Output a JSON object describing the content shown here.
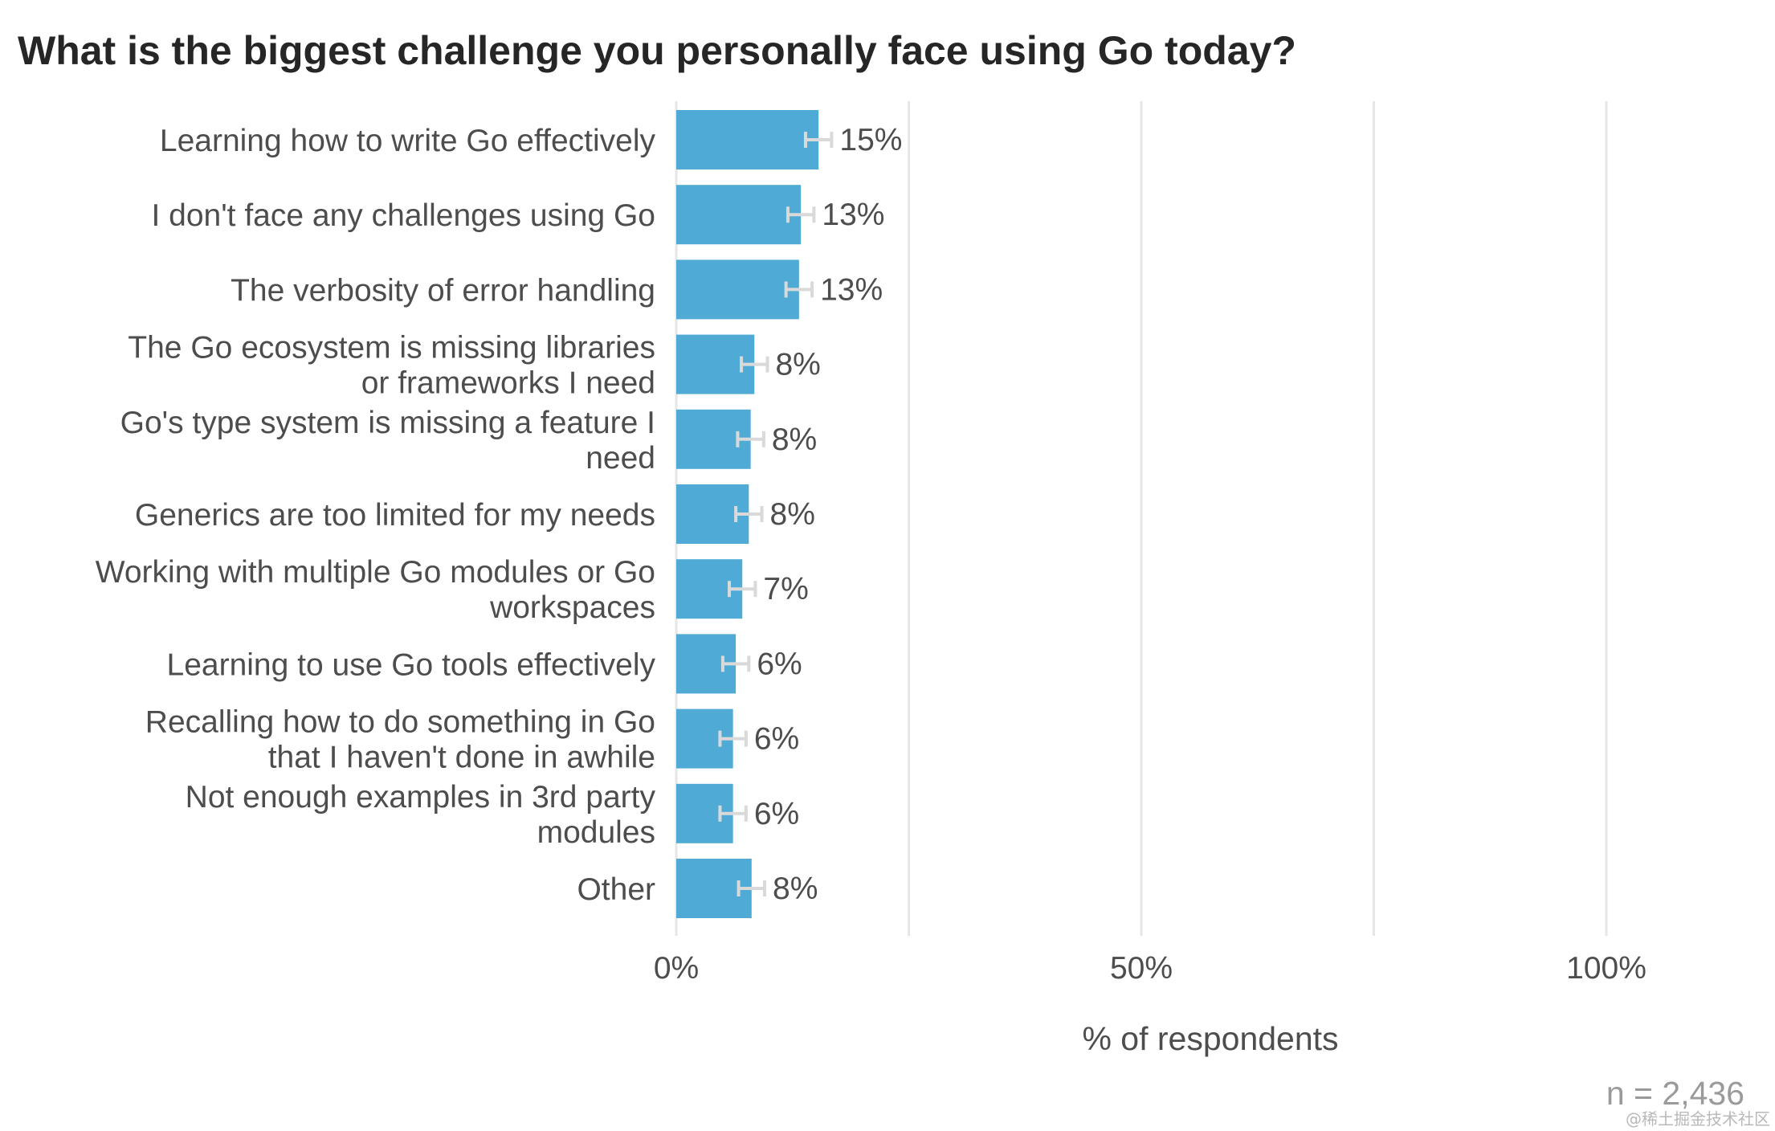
{
  "chart_data": {
    "type": "bar",
    "orientation": "horizontal",
    "title": "What is the biggest challenge you personally face using Go today?",
    "categories": [
      [
        "Learning how to write Go effectively"
      ],
      [
        "I don't face any challenges using Go"
      ],
      [
        "The verbosity of error handling"
      ],
      [
        "The Go ecosystem is missing libraries",
        "or frameworks I need"
      ],
      [
        "Go's type system is missing a feature I",
        "need"
      ],
      [
        "Generics are too limited for my needs"
      ],
      [
        "Working with multiple Go modules or Go",
        "workspaces"
      ],
      [
        "Learning to use Go tools effectively"
      ],
      [
        "Recalling how to do something in Go",
        "that I haven't done in awhile"
      ],
      [
        "Not enough examples in 3rd party",
        "modules"
      ],
      [
        "Other"
      ]
    ],
    "values": [
      15.3,
      13.4,
      13.2,
      8.4,
      8.0,
      7.8,
      7.1,
      6.4,
      6.1,
      6.1,
      8.1
    ],
    "value_labels": [
      "15%",
      "13%",
      "13%",
      "8%",
      "8%",
      "8%",
      "7%",
      "6%",
      "6%",
      "6%",
      "8%"
    ],
    "error_margin": 1.4,
    "xlabel": "% of respondents",
    "xlim": [
      0,
      100
    ],
    "x_ticks": [
      {
        "value": 0,
        "label": "0%"
      },
      {
        "value": 50,
        "label": "50%"
      },
      {
        "value": 100,
        "label": "100%"
      }
    ],
    "gridlines": [
      0,
      25,
      50,
      75,
      100
    ],
    "colors": {
      "bar": "#4fabd6",
      "error_bar": "#d9d9d9",
      "grid": "#e6e6e6",
      "text": "#4d4d4d"
    },
    "n_label": "n =  2,436"
  },
  "watermark": "@稀土掘金技术社区"
}
